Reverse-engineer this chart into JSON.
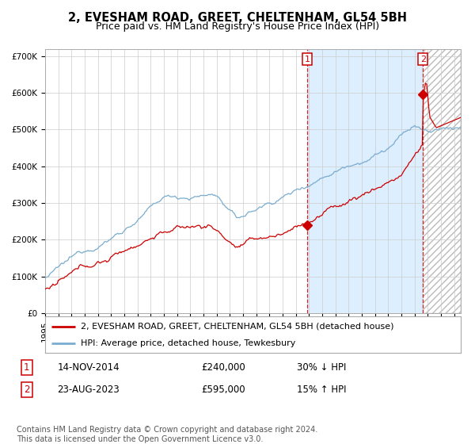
{
  "title": "2, EVESHAM ROAD, GREET, CHELTENHAM, GL54 5BH",
  "subtitle": "Price paid vs. HM Land Registry's House Price Index (HPI)",
  "ylim": [
    0,
    720000
  ],
  "yticks": [
    0,
    100000,
    200000,
    300000,
    400000,
    500000,
    600000,
    700000
  ],
  "ytick_labels": [
    "£0",
    "£100K",
    "£200K",
    "£300K",
    "£400K",
    "£500K",
    "£600K",
    "£700K"
  ],
  "xlim_start": 1995.0,
  "xlim_end": 2026.5,
  "property_color": "#cc0000",
  "hpi_color": "#7aadcf",
  "background_color": "#ffffff",
  "shaded_region_color": "#ddeeff",
  "grid_color": "#cccccc",
  "sale1_date": 2014.87,
  "sale1_price": 240000,
  "sale2_date": 2023.64,
  "sale2_price": 595000,
  "legend_property": "2, EVESHAM ROAD, GREET, CHELTENHAM, GL54 5BH (detached house)",
  "legend_hpi": "HPI: Average price, detached house, Tewkesbury",
  "footer": "Contains HM Land Registry data © Crown copyright and database right 2024.\nThis data is licensed under the Open Government Licence v3.0.",
  "title_fontsize": 10.5,
  "subtitle_fontsize": 9,
  "tick_fontsize": 7.5,
  "legend_fontsize": 8,
  "annotation_fontsize": 8.5,
  "footer_fontsize": 7
}
